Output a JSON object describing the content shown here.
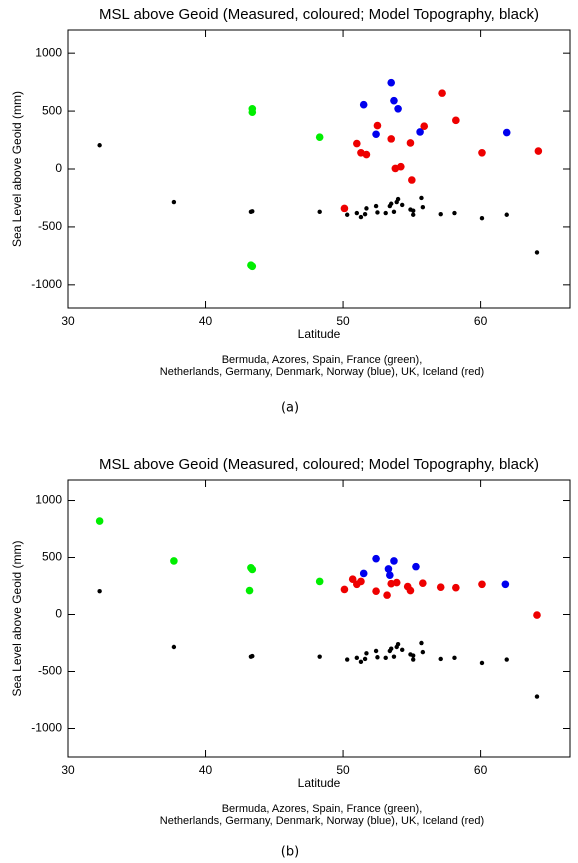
{
  "chart_data": [
    {
      "type": "scatter",
      "title": "MSL above Geoid (Measured, coloured; Model Topography, black)",
      "xlabel": "Latitude",
      "ylabel": "Sea Level above Geoid (mm)",
      "note": [
        "Bermuda, Azores, Spain, France (green),",
        "Netherlands, Germany, Denmark, Norway (blue), UK, Iceland (red)"
      ],
      "caption": "(a)",
      "xlim": [
        30,
        66.5
      ],
      "ylim": [
        -1200,
        1200
      ],
      "xticks": [
        30,
        40,
        50,
        60
      ],
      "yticks": [
        -1000,
        -500,
        0,
        500,
        1000
      ],
      "series": [
        {
          "color": "#000000",
          "x": [
            32.3,
            37.7,
            43.3,
            43.4,
            48.3,
            50.3,
            51.0,
            51.3,
            51.6,
            51.7,
            52.4,
            52.5,
            53.1,
            53.4,
            53.5,
            53.7,
            53.9,
            54.0,
            54.3,
            54.9,
            55.1,
            55.1,
            55.7,
            55.8,
            57.1,
            58.1,
            60.1,
            61.9,
            64.1
          ],
          "values": [
            205,
            -285,
            -370,
            -365,
            -370,
            -395,
            -380,
            -415,
            -390,
            -340,
            -320,
            -375,
            -380,
            -320,
            -300,
            -370,
            -285,
            -260,
            -310,
            -350,
            -395,
            -360,
            -250,
            -330,
            -390,
            -380,
            -425,
            -395,
            -720
          ]
        },
        {
          "color": "#00ee00",
          "x": [
            43.4,
            43.4,
            43.3,
            43.4,
            48.3
          ],
          "values": [
            520,
            490,
            -830,
            -840,
            275
          ]
        },
        {
          "color": "#0000ee",
          "x": [
            51.5,
            52.4,
            53.5,
            53.7,
            54.0,
            55.6,
            61.9
          ],
          "values": [
            555,
            300,
            745,
            590,
            520,
            320,
            315
          ]
        },
        {
          "color": "#ee0000",
          "x": [
            50.1,
            51.0,
            51.3,
            51.7,
            52.5,
            53.5,
            53.8,
            54.2,
            54.9,
            55.0,
            55.9,
            57.2,
            58.2,
            60.1,
            64.2
          ],
          "values": [
            -340,
            220,
            140,
            125,
            375,
            260,
            5,
            20,
            225,
            -95,
            370,
            655,
            420,
            140,
            155
          ]
        }
      ]
    },
    {
      "type": "scatter",
      "title": "MSL above Geoid (Measured, coloured; Model Topography, black)",
      "xlabel": "Latitude",
      "ylabel": "Sea Level above Geoid (mm)",
      "note": [
        "Bermuda, Azores, Spain, France (green),",
        "Netherlands, Germany, Denmark, Norway (blue), UK, Iceland (red)"
      ],
      "caption": "(b)",
      "xlim": [
        30,
        66.5
      ],
      "ylim": [
        -1250,
        1180
      ],
      "xticks": [
        30,
        40,
        50,
        60
      ],
      "yticks": [
        -1000,
        -500,
        0,
        500,
        1000
      ],
      "series": [
        {
          "color": "#000000",
          "x": [
            32.3,
            37.7,
            43.3,
            43.4,
            48.3,
            50.3,
            51.0,
            51.3,
            51.6,
            51.7,
            52.4,
            52.5,
            53.1,
            53.4,
            53.5,
            53.7,
            53.9,
            54.0,
            54.3,
            54.9,
            55.1,
            55.1,
            55.7,
            55.8,
            57.1,
            58.1,
            60.1,
            61.9,
            64.1
          ],
          "values": [
            205,
            -285,
            -370,
            -365,
            -370,
            -395,
            -380,
            -415,
            -390,
            -340,
            -320,
            -375,
            -380,
            -320,
            -300,
            -370,
            -285,
            -260,
            -310,
            -350,
            -395,
            -360,
            -250,
            -330,
            -390,
            -380,
            -425,
            -395,
            -720
          ]
        },
        {
          "color": "#00ee00",
          "x": [
            32.3,
            37.7,
            43.3,
            43.4,
            43.2,
            48.3
          ],
          "values": [
            820,
            470,
            410,
            395,
            210,
            290
          ]
        },
        {
          "color": "#0000ee",
          "x": [
            51.5,
            52.4,
            53.3,
            53.7,
            53.4,
            55.3,
            61.8
          ],
          "values": [
            360,
            490,
            400,
            470,
            345,
            420,
            265
          ]
        },
        {
          "color": "#ee0000",
          "x": [
            50.1,
            50.7,
            51.0,
            51.3,
            52.4,
            53.2,
            53.5,
            53.9,
            54.7,
            54.9,
            55.8,
            57.1,
            58.2,
            60.1,
            64.1
          ],
          "values": [
            220,
            310,
            265,
            290,
            205,
            170,
            270,
            280,
            245,
            210,
            275,
            240,
            235,
            265,
            -5
          ]
        }
      ]
    }
  ]
}
